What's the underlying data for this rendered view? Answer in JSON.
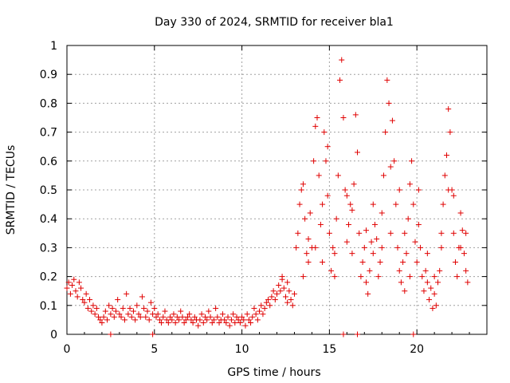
{
  "chart_data": {
    "type": "scatter",
    "title": "Day 330 of 2024, SRMTID for receiver bla1",
    "xlabel": "GPS time / hours",
    "ylabel": "SRMTID / TECUs",
    "xlim": [
      0,
      24
    ],
    "ylim": [
      0,
      1
    ],
    "xticks": [
      0,
      5,
      10,
      15,
      20
    ],
    "yticks": [
      0,
      0.1,
      0.2,
      0.3,
      0.4,
      0.5,
      0.6,
      0.7,
      0.8,
      0.9,
      1
    ],
    "xtick_labels": [
      "0",
      "5",
      "10",
      "15",
      "20"
    ],
    "ytick_labels": [
      "0",
      "0.1",
      "0.2",
      "0.3",
      "0.4",
      "0.5",
      "0.6",
      "0.7",
      "0.8",
      "0.9",
      "1"
    ],
    "grid": true,
    "marker": "+",
    "color": "#e00000",
    "series": [
      {
        "name": "SRMTID",
        "points": [
          [
            0.0,
            0.16
          ],
          [
            0.1,
            0.18
          ],
          [
            0.2,
            0.14
          ],
          [
            0.3,
            0.17
          ],
          [
            0.4,
            0.19
          ],
          [
            0.5,
            0.15
          ],
          [
            0.6,
            0.13
          ],
          [
            0.7,
            0.18
          ],
          [
            0.8,
            0.16
          ],
          [
            0.9,
            0.12
          ],
          [
            1.0,
            0.11
          ],
          [
            1.1,
            0.14
          ],
          [
            1.2,
            0.09
          ],
          [
            1.3,
            0.12
          ],
          [
            1.4,
            0.08
          ],
          [
            1.5,
            0.1
          ],
          [
            1.6,
            0.07
          ],
          [
            1.7,
            0.09
          ],
          [
            1.8,
            0.06
          ],
          [
            1.9,
            0.05
          ],
          [
            2.0,
            0.04
          ],
          [
            2.1,
            0.06
          ],
          [
            2.2,
            0.08
          ],
          [
            2.3,
            0.05
          ],
          [
            2.4,
            0.1
          ],
          [
            2.5,
            0.07
          ],
          [
            2.6,
            0.09
          ],
          [
            2.7,
            0.06
          ],
          [
            2.8,
            0.08
          ],
          [
            2.9,
            0.12
          ],
          [
            3.0,
            0.07
          ],
          [
            3.1,
            0.06
          ],
          [
            3.2,
            0.09
          ],
          [
            3.3,
            0.05
          ],
          [
            3.4,
            0.14
          ],
          [
            3.5,
            0.07
          ],
          [
            3.6,
            0.09
          ],
          [
            3.7,
            0.06
          ],
          [
            3.8,
            0.08
          ],
          [
            3.9,
            0.05
          ],
          [
            4.0,
            0.1
          ],
          [
            4.1,
            0.07
          ],
          [
            4.2,
            0.06
          ],
          [
            4.3,
            0.13
          ],
          [
            4.4,
            0.09
          ],
          [
            4.5,
            0.06
          ],
          [
            4.6,
            0.08
          ],
          [
            4.7,
            0.05
          ],
          [
            4.8,
            0.11
          ],
          [
            4.9,
            0.07
          ],
          [
            5.0,
            0.09
          ],
          [
            5.1,
            0.06
          ],
          [
            5.2,
            0.07
          ],
          [
            5.3,
            0.05
          ],
          [
            5.4,
            0.04
          ],
          [
            5.5,
            0.06
          ],
          [
            5.6,
            0.08
          ],
          [
            5.7,
            0.05
          ],
          [
            5.8,
            0.04
          ],
          [
            5.9,
            0.06
          ],
          [
            6.0,
            0.05
          ],
          [
            6.1,
            0.07
          ],
          [
            6.2,
            0.04
          ],
          [
            6.3,
            0.06
          ],
          [
            6.4,
            0.05
          ],
          [
            6.5,
            0.08
          ],
          [
            6.6,
            0.06
          ],
          [
            6.7,
            0.04
          ],
          [
            6.8,
            0.05
          ],
          [
            6.9,
            0.06
          ],
          [
            7.0,
            0.07
          ],
          [
            7.1,
            0.05
          ],
          [
            7.2,
            0.04
          ],
          [
            7.3,
            0.06
          ],
          [
            7.4,
            0.05
          ],
          [
            7.5,
            0.03
          ],
          [
            7.6,
            0.05
          ],
          [
            7.7,
            0.07
          ],
          [
            7.8,
            0.04
          ],
          [
            7.9,
            0.06
          ],
          [
            8.0,
            0.05
          ],
          [
            8.1,
            0.08
          ],
          [
            8.2,
            0.06
          ],
          [
            8.3,
            0.04
          ],
          [
            8.4,
            0.05
          ],
          [
            8.5,
            0.09
          ],
          [
            8.6,
            0.06
          ],
          [
            8.7,
            0.04
          ],
          [
            8.8,
            0.05
          ],
          [
            8.9,
            0.07
          ],
          [
            9.0,
            0.05
          ],
          [
            9.1,
            0.04
          ],
          [
            9.2,
            0.06
          ],
          [
            9.3,
            0.03
          ],
          [
            9.4,
            0.05
          ],
          [
            9.5,
            0.07
          ],
          [
            9.6,
            0.04
          ],
          [
            9.7,
            0.06
          ],
          [
            9.8,
            0.05
          ],
          [
            9.9,
            0.04
          ],
          [
            10.0,
            0.06
          ],
          [
            10.1,
            0.05
          ],
          [
            10.2,
            0.03
          ],
          [
            10.3,
            0.07
          ],
          [
            10.4,
            0.05
          ],
          [
            10.5,
            0.04
          ],
          [
            10.6,
            0.06
          ],
          [
            10.7,
            0.09
          ],
          [
            10.8,
            0.07
          ],
          [
            10.9,
            0.05
          ],
          [
            11.0,
            0.08
          ],
          [
            11.1,
            0.1
          ],
          [
            11.2,
            0.07
          ],
          [
            11.3,
            0.09
          ],
          [
            11.4,
            0.11
          ],
          [
            11.5,
            0.12
          ],
          [
            11.6,
            0.1
          ],
          [
            11.7,
            0.13
          ],
          [
            11.8,
            0.15
          ],
          [
            11.9,
            0.12
          ],
          [
            12.0,
            0.14
          ],
          [
            12.1,
            0.17
          ],
          [
            12.2,
            0.15
          ],
          [
            12.3,
            0.19
          ],
          [
            12.4,
            0.16
          ],
          [
            12.5,
            0.13
          ],
          [
            12.6,
            0.11
          ],
          [
            12.7,
            0.15
          ],
          [
            12.8,
            0.12
          ],
          [
            12.9,
            0.1
          ],
          [
            13.0,
            0.14
          ],
          [
            13.1,
            0.3
          ],
          [
            13.2,
            0.35
          ],
          [
            13.3,
            0.45
          ],
          [
            13.4,
            0.5
          ],
          [
            13.5,
            0.52
          ],
          [
            13.6,
            0.4
          ],
          [
            13.7,
            0.28
          ],
          [
            13.8,
            0.33
          ],
          [
            13.9,
            0.42
          ],
          [
            14.0,
            0.3
          ],
          [
            14.1,
            0.6
          ],
          [
            14.2,
            0.72
          ],
          [
            14.3,
            0.75
          ],
          [
            14.4,
            0.55
          ],
          [
            14.5,
            0.38
          ],
          [
            14.6,
            0.25
          ],
          [
            14.7,
            0.7
          ],
          [
            14.8,
            0.6
          ],
          [
            14.9,
            0.48
          ],
          [
            15.0,
            0.35
          ],
          [
            15.1,
            0.22
          ],
          [
            15.2,
            0.3
          ],
          [
            15.3,
            0.28
          ],
          [
            15.4,
            0.4
          ],
          [
            15.5,
            0.55
          ],
          [
            15.6,
            0.88
          ],
          [
            15.7,
            0.95
          ],
          [
            15.8,
            0.75
          ],
          [
            15.9,
            0.5
          ],
          [
            16.0,
            0.32
          ],
          [
            16.1,
            0.38
          ],
          [
            16.2,
            0.45
          ],
          [
            16.3,
            0.28
          ],
          [
            16.4,
            0.52
          ],
          [
            16.5,
            0.76
          ],
          [
            16.6,
            0.63
          ],
          [
            16.7,
            0.35
          ],
          [
            16.8,
            0.2
          ],
          [
            16.9,
            0.25
          ],
          [
            17.0,
            0.3
          ],
          [
            17.1,
            0.18
          ],
          [
            17.2,
            0.14
          ],
          [
            17.3,
            0.22
          ],
          [
            17.4,
            0.32
          ],
          [
            17.5,
            0.28
          ],
          [
            17.6,
            0.38
          ],
          [
            17.7,
            0.33
          ],
          [
            17.8,
            0.2
          ],
          [
            17.9,
            0.25
          ],
          [
            18.0,
            0.42
          ],
          [
            18.1,
            0.55
          ],
          [
            18.2,
            0.7
          ],
          [
            18.3,
            0.88
          ],
          [
            18.4,
            0.8
          ],
          [
            18.5,
            0.58
          ],
          [
            18.6,
            0.74
          ],
          [
            18.7,
            0.6
          ],
          [
            18.8,
            0.45
          ],
          [
            18.9,
            0.3
          ],
          [
            19.0,
            0.22
          ],
          [
            19.1,
            0.18
          ],
          [
            19.2,
            0.25
          ],
          [
            19.3,
            0.35
          ],
          [
            19.4,
            0.28
          ],
          [
            19.5,
            0.4
          ],
          [
            19.6,
            0.52
          ],
          [
            19.7,
            0.6
          ],
          [
            19.8,
            0.45
          ],
          [
            19.9,
            0.32
          ],
          [
            20.0,
            0.25
          ],
          [
            20.1,
            0.38
          ],
          [
            20.2,
            0.3
          ],
          [
            20.3,
            0.2
          ],
          [
            20.4,
            0.15
          ],
          [
            20.5,
            0.22
          ],
          [
            20.6,
            0.18
          ],
          [
            20.7,
            0.12
          ],
          [
            20.8,
            0.16
          ],
          [
            20.9,
            0.09
          ],
          [
            21.0,
            0.14
          ],
          [
            21.1,
            0.1
          ],
          [
            21.2,
            0.18
          ],
          [
            21.3,
            0.22
          ],
          [
            21.4,
            0.3
          ],
          [
            21.5,
            0.45
          ],
          [
            21.6,
            0.55
          ],
          [
            21.7,
            0.62
          ],
          [
            21.8,
            0.78
          ],
          [
            21.9,
            0.7
          ],
          [
            22.0,
            0.5
          ],
          [
            22.1,
            0.35
          ],
          [
            22.2,
            0.25
          ],
          [
            22.3,
            0.2
          ],
          [
            22.4,
            0.3
          ],
          [
            22.5,
            0.42
          ],
          [
            22.6,
            0.36
          ],
          [
            22.7,
            0.28
          ],
          [
            22.8,
            0.22
          ],
          [
            22.9,
            0.18
          ],
          [
            2.5,
            0.0
          ],
          [
            4.9,
            0.0
          ],
          [
            15.8,
            0.0
          ],
          [
            16.6,
            0.0
          ],
          [
            19.8,
            0.0
          ],
          [
            12.3,
            0.2
          ],
          [
            12.6,
            0.18
          ],
          [
            13.5,
            0.2
          ],
          [
            13.8,
            0.25
          ],
          [
            14.2,
            0.3
          ],
          [
            14.6,
            0.45
          ],
          [
            14.9,
            0.65
          ],
          [
            15.3,
            0.2
          ],
          [
            16.0,
            0.48
          ],
          [
            16.3,
            0.43
          ],
          [
            17.1,
            0.36
          ],
          [
            17.5,
            0.45
          ],
          [
            18.0,
            0.3
          ],
          [
            18.5,
            0.35
          ],
          [
            19.0,
            0.5
          ],
          [
            19.3,
            0.15
          ],
          [
            19.6,
            0.2
          ],
          [
            20.1,
            0.5
          ],
          [
            20.6,
            0.28
          ],
          [
            21.0,
            0.2
          ],
          [
            21.4,
            0.35
          ],
          [
            21.8,
            0.5
          ],
          [
            22.1,
            0.48
          ],
          [
            22.5,
            0.3
          ],
          [
            22.8,
            0.35
          ]
        ]
      }
    ]
  }
}
